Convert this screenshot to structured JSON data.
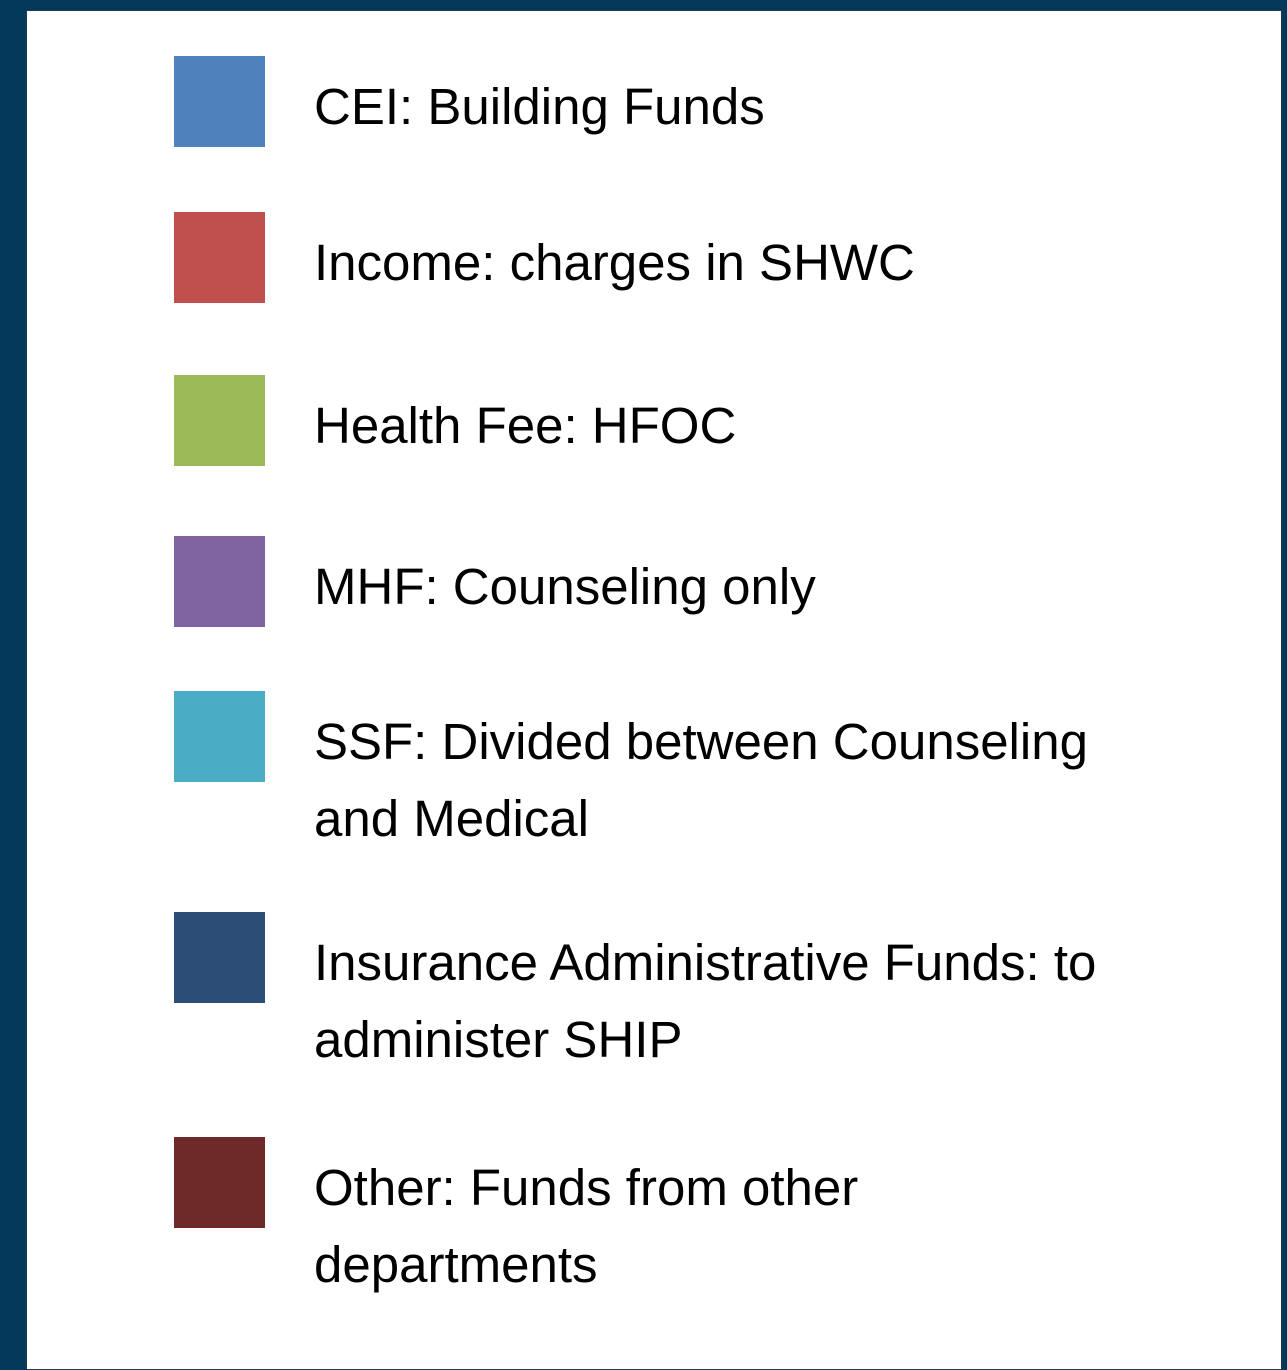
{
  "legend": {
    "items": [
      {
        "color": "#4f81bd",
        "lines": [
          "CEI: Building Funds"
        ]
      },
      {
        "color": "#c0504d",
        "lines": [
          "Income: charges in SHWC"
        ]
      },
      {
        "color": "#9bbb59",
        "lines": [
          "Health Fee: HFOC"
        ]
      },
      {
        "color": "#8064a2",
        "lines": [
          "MHF: Counseling only"
        ]
      },
      {
        "color": "#4bacc6",
        "lines": [
          "SSF: Divided between Counseling",
          "and Medical"
        ]
      },
      {
        "color": "#2c4d75",
        "lines": [
          "Insurance Administrative Funds: to",
          "administer SHIP"
        ]
      },
      {
        "color": "#6d2a28",
        "lines": [
          "Other: Funds from other",
          "departments"
        ]
      }
    ]
  }
}
